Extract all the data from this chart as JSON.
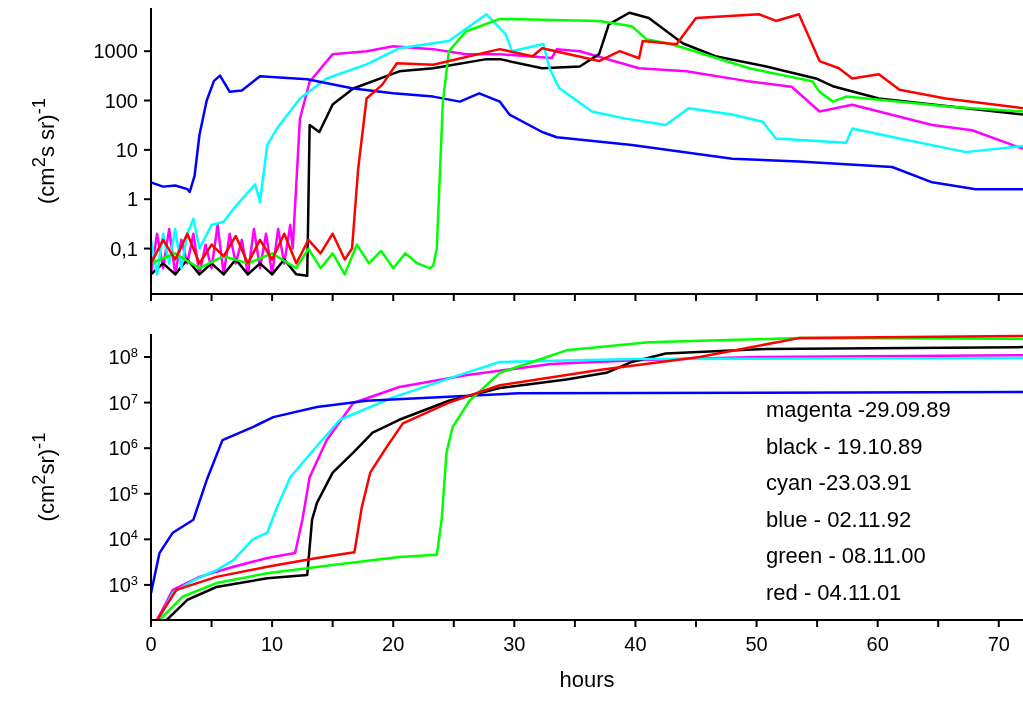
{
  "chart_data": [
    {
      "type": "line",
      "ylabel": "(cm$^{2}$s sr)$^{-1}$",
      "log": "y",
      "grid": false,
      "legend": false,
      "tick_labels": "y",
      "xlim": [
        0,
        72
      ],
      "xticks": [
        0,
        {
          "value": 5,
          "label": null
        },
        10,
        {
          "value": 15,
          "label": null
        },
        20,
        {
          "value": 25,
          "label": null
        },
        30,
        {
          "value": 35,
          "label": null
        },
        40,
        {
          "value": 45,
          "label": null
        },
        50,
        {
          "value": 55,
          "label": null
        },
        60,
        {
          "value": 65,
          "label": null
        },
        70
      ],
      "ylim": [
        0.012,
        7500
      ],
      "yticks": [
        {
          "value": 0.1,
          "label": "0,1"
        },
        1,
        10,
        100,
        1000
      ],
      "series": [
        {
          "color": "#ff00ff",
          "x": [
            0,
            0.5,
            1,
            1.5,
            2,
            2.5,
            3,
            3.5,
            4,
            4.5,
            5,
            5.5,
            6,
            6.5,
            7,
            7.5,
            8,
            8.5,
            9,
            9.5,
            10,
            10.5,
            11,
            11.5,
            11.7,
            12.3,
            13.1,
            15,
            17.8,
            20,
            23.3,
            26,
            28.8,
            33.1,
            33.5,
            35.4,
            40.3,
            44.2,
            49.1,
            52.9,
            55.2,
            57.9,
            64.5,
            67.8,
            72
          ],
          "values": [
            0.03,
            0.2,
            0.04,
            0.25,
            0.03,
            0.15,
            0.05,
            0.2,
            0.03,
            0.12,
            0.04,
            0.3,
            0.03,
            0.2,
            0.05,
            0.15,
            0.03,
            0.25,
            0.04,
            0.2,
            0.03,
            0.25,
            0.05,
            0.3,
            0.1,
            43,
            240,
            870,
            1000,
            1260,
            1100,
            870,
            870,
            730,
            1100,
            1000,
            450,
            390,
            250,
            190,
            60,
            82,
            32,
            25,
            10.5
          ]
        },
        {
          "color": "#000000",
          "x": [
            0,
            1,
            2,
            3,
            4,
            5,
            6,
            7,
            8,
            9,
            10,
            11,
            12,
            12.9,
            13.1,
            13.9,
            15,
            16.7,
            20.5,
            23.3,
            27.7,
            28.8,
            32.3,
            35.4,
            37,
            37.8,
            39.5,
            41.1,
            43.9,
            46.6,
            50.8,
            54.9,
            56.3,
            60.1,
            67.3,
            72
          ],
          "values": [
            0.03,
            0.05,
            0.03,
            0.06,
            0.03,
            0.05,
            0.03,
            0.06,
            0.03,
            0.05,
            0.03,
            0.06,
            0.03,
            0.028,
            32,
            23,
            83,
            175,
            390,
            450,
            690,
            690,
            450,
            490,
            870,
            3500,
            6000,
            4700,
            1450,
            790,
            490,
            280,
            195,
            110,
            70,
            52
          ]
        },
        {
          "color": "#00ffff",
          "x": [
            0,
            0.5,
            1,
            1.5,
            2,
            2.5,
            3,
            3.5,
            4,
            5,
            6,
            6.8,
            7.5,
            8.6,
            9,
            9.6,
            10.4,
            12.3,
            14.5,
            17.8,
            20.5,
            24.6,
            27.7,
            29.3,
            29.8,
            32.4,
            32.9,
            33.7,
            36.4,
            39.2,
            42.5,
            44.4,
            48,
            50.5,
            51.6,
            57.4,
            57.9,
            61.8,
            67.3,
            72
          ],
          "values": [
            0.15,
            0.03,
            0.2,
            0.05,
            0.25,
            0.04,
            0.2,
            0.4,
            0.1,
            0.3,
            0.35,
            0.63,
            1,
            2,
            0.87,
            12.6,
            27,
            110,
            280,
            540,
            1150,
            1600,
            5600,
            2200,
            1000,
            1400,
            450,
            180,
            60,
            43,
            32,
            70,
            52,
            37,
            17,
            14,
            27,
            17,
            9,
            12
          ]
        },
        {
          "color": "#0000ff",
          "x": [
            0,
            1,
            2,
            3,
            3.2,
            3.6,
            4,
            4.6,
            5.2,
            5.7,
            6.5,
            7.5,
            9,
            12.9,
            16.7,
            20,
            23.3,
            25.5,
            27.1,
            28.8,
            29.6,
            32.3,
            33.5,
            39.7,
            48,
            53.5,
            61.2,
            64.5,
            68.1,
            72
          ],
          "values": [
            2.2,
            1.8,
            1.9,
            1.6,
            1.4,
            3,
            20,
            100,
            250,
            320,
            150,
            160,
            310,
            270,
            175,
            140,
            120,
            95,
            140,
            95,
            52,
            23,
            18,
            12.5,
            6.6,
            5.8,
            4.5,
            2.2,
            1.6,
            1.6
          ]
        },
        {
          "color": "#00ff00",
          "x": [
            0,
            2,
            4,
            6,
            8,
            10,
            12,
            13,
            14,
            15,
            16,
            17,
            18,
            19,
            20,
            21,
            22,
            23,
            23.3,
            23.6,
            24.1,
            24.6,
            26,
            28.8,
            37,
            39.7,
            40.9,
            43,
            49.4,
            54.6,
            55.2,
            56.3,
            57.4,
            66,
            72
          ],
          "values": [
            0.05,
            0.08,
            0.04,
            0.07,
            0.05,
            0.08,
            0.04,
            0.1,
            0.04,
            0.08,
            0.03,
            0.12,
            0.05,
            0.09,
            0.04,
            0.08,
            0.05,
            0.04,
            0.045,
            0.1,
            95,
            1000,
            2500,
            4500,
            4100,
            3200,
            1750,
            1380,
            450,
            245,
            150,
            95,
            120,
            75,
            60
          ]
        },
        {
          "color": "#ff0000",
          "x": [
            0,
            1,
            2,
            3,
            4,
            5,
            6,
            7,
            8,
            9,
            10,
            11,
            12,
            13,
            14,
            15,
            16,
            16.6,
            17.1,
            17.8,
            19.1,
            20.3,
            23.3,
            28.8,
            31.5,
            32.3,
            37,
            38.7,
            40.3,
            40.6,
            43.4,
            45,
            50.2,
            51.6,
            53.5,
            55.2,
            56.8,
            57.9,
            60.1,
            61.8,
            65.6,
            72
          ],
          "values": [
            0.05,
            0.15,
            0.06,
            0.2,
            0.05,
            0.12,
            0.07,
            0.18,
            0.05,
            0.15,
            0.06,
            0.2,
            0.05,
            0.15,
            0.08,
            0.2,
            0.06,
            0.1,
            4,
            110,
            210,
            570,
            530,
            1100,
            790,
            1150,
            630,
            1000,
            720,
            1600,
            1380,
            4700,
            5600,
            4100,
            5600,
            630,
            450,
            280,
            340,
            165,
            110,
            70
          ]
        }
      ]
    },
    {
      "type": "line",
      "xlabel": "hours",
      "ylabel": "(cm$^{2}$sr)$^{-1}$",
      "log": "y",
      "grid": false,
      "legend": false,
      "xlim": [
        0,
        72
      ],
      "xticks": [
        0,
        {
          "value": 5,
          "label": null
        },
        10,
        {
          "value": 15,
          "label": null
        },
        20,
        {
          "value": 25,
          "label": null
        },
        30,
        {
          "value": 35,
          "label": null
        },
        40,
        {
          "value": 45,
          "label": null
        },
        50,
        {
          "value": 55,
          "label": null
        },
        60,
        {
          "value": 65,
          "label": null
        },
        70
      ],
      "ylim": [
        170,
        320000000
      ],
      "yticks": [
        {
          "value": 1000,
          "label": "10$^{3}$"
        },
        {
          "value": 10000,
          "label": "10$^{4}$"
        },
        {
          "value": 100000,
          "label": "10$^{5}$"
        },
        {
          "value": 1000000,
          "label": "10$^{6}$"
        },
        {
          "value": 10000000,
          "label": "10$^{7}$"
        },
        {
          "value": 100000000,
          "label": "10$^{8}$"
        }
      ],
      "annotations": [
        "magenta -29.09.89",
        "black - 19.10.89",
        "cyan -23.03.91",
        "blue - 02.11.92",
        "green - 08.11.00",
        "red - 04.11.01"
      ],
      "series": [
        {
          "color": "#ff00ff",
          "x": [
            0.5,
            1.8,
            4,
            6.8,
            9.6,
            11.9,
            12.5,
            13.1,
            14.5,
            16.7,
            20.5,
            26,
            30.4,
            33,
            40,
            50,
            72
          ],
          "values": [
            170,
            780,
            1500,
            2500,
            3900,
            5000,
            27000,
            230000,
            1500000,
            9800000,
            22000000,
            40000000,
            57000000,
            70000000,
            85000000,
            100000000,
            110000000
          ]
        },
        {
          "color": "#000000",
          "x": [
            1.3,
            3,
            5.4,
            9.6,
            12.9,
            13.3,
            13.7,
            15,
            16.7,
            18.3,
            20.5,
            24.6,
            28.8,
            34.3,
            37.6,
            39.7,
            42.5,
            50.8,
            72
          ],
          "values": [
            170,
            470,
            900,
            1400,
            1650,
            27000,
            63000,
            290000,
            800000,
            2200000,
            4200000,
            11000000,
            21000000,
            32000000,
            45000000,
            78000000,
            120000000,
            150000000,
            165000000
          ]
        },
        {
          "color": "#00ffff",
          "x": [
            0.6,
            1.8,
            3.5,
            5.4,
            6.8,
            8.4,
            9.6,
            10.4,
            11.5,
            13.4,
            15.6,
            20,
            26,
            28.8,
            40,
            72
          ],
          "values": [
            170,
            660,
            1260,
            2100,
            3500,
            10000,
            14000,
            50000,
            230000,
            900000,
            4200000,
            13000000,
            45000000,
            78000000,
            90000000,
            95000000
          ]
        },
        {
          "color": "#0000ff",
          "x": [
            0,
            0.7,
            1.8,
            3.5,
            4.6,
            5.9,
            8.4,
            10.1,
            13.7,
            17.8,
            30.4,
            72
          ],
          "values": [
            660,
            5000,
            14000,
            27000,
            200000,
            1500000,
            2900000,
            4800000,
            8000000,
            11000000,
            16000000,
            17000000
          ]
        },
        {
          "color": "#00ff00",
          "x": [
            0.7,
            2.6,
            5.4,
            9.6,
            15,
            20.5,
            23.6,
            24,
            24.4,
            24.9,
            26.3,
            28.8,
            34.3,
            41.1,
            53.5,
            72
          ],
          "values": [
            170,
            550,
            1100,
            1800,
            2750,
            4100,
            4600,
            27000,
            800000,
            2900000,
            11000000,
            45000000,
            140000000,
            210000000,
            260000000,
            250000000
          ]
        },
        {
          "color": "#ff0000",
          "x": [
            0.5,
            2.1,
            5.4,
            9.6,
            13.7,
            16.8,
            17.4,
            18.1,
            19.5,
            20.8,
            24.6,
            28.8,
            37,
            45.3,
            53.5,
            72
          ],
          "values": [
            170,
            780,
            1500,
            2500,
            3900,
            5200,
            50000,
            290000,
            1100000,
            3500000,
            10000000,
            24000000,
            52000000,
            100000000,
            260000000,
            290000000
          ]
        }
      ]
    }
  ]
}
